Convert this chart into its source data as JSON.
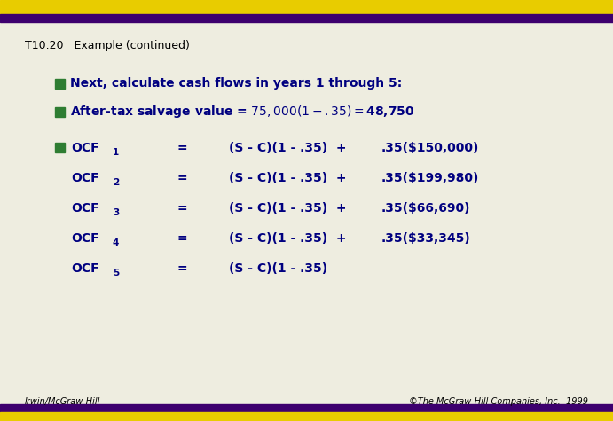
{
  "title": "T10.20   Example (continued)",
  "bg_color": "#eeede0",
  "top_bar_color": "#e8cc00",
  "purple_bar_color": "#3d006e",
  "bullet_color": "#2e7d32",
  "text_color": "#000080",
  "footer_left": "Irwin/McGraw-Hill",
  "footer_right": "©The McGraw-Hill Companies, Inc.  1999",
  "bullet1": "Next, calculate cash flows in years 1 through 5:",
  "bullet2": "After-tax salvage value = $75,000(1 - .35) = $48,750",
  "ocf_rows": [
    {
      "label": "OCF",
      "sub": "1",
      "eq": "=",
      "formula": "(S - C)(1 - .35)  +",
      "extra": ".35($150,000)"
    },
    {
      "label": "OCF",
      "sub": "2",
      "eq": "=",
      "formula": "(S - C)(1 - .35)  +",
      "extra": ".35($199,980)"
    },
    {
      "label": "OCF",
      "sub": "3",
      "eq": "=",
      "formula": "(S - C)(1 - .35)  +",
      "extra": ".35($66,690)"
    },
    {
      "label": "OCF",
      "sub": "4",
      "eq": "=",
      "formula": "(S - C)(1 - .35)  +",
      "extra": ".35($33,345)"
    },
    {
      "label": "OCF",
      "sub": "5",
      "eq": "=",
      "formula": "(S - C)(1 - .35)",
      "extra": ""
    }
  ]
}
